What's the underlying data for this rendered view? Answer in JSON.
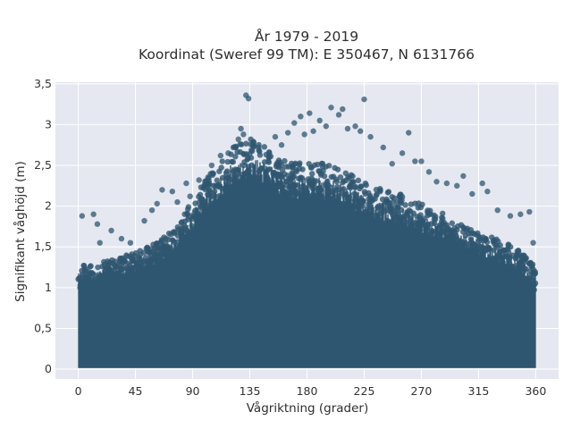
{
  "chart_data": {
    "type": "scatter",
    "title_lines": [
      "År 1979 - 2019",
      "Koordinat (Sweref 99 TM): E 350467, N 6131766"
    ],
    "xlabel": "Vågriktning (grader)",
    "ylabel": "Signifikant våghöjd (m)",
    "xlim": [
      -18,
      378
    ],
    "ylim": [
      -0.12,
      3.52
    ],
    "xticks": [
      0,
      45,
      90,
      135,
      180,
      225,
      270,
      315,
      360
    ],
    "xtick_labels": [
      "0",
      "45",
      "90",
      "135",
      "180",
      "225",
      "270",
      "315",
      "360"
    ],
    "yticks": [
      0,
      0.5,
      1,
      1.5,
      2,
      2.5,
      3,
      3.5
    ],
    "ytick_labels": [
      "0",
      "0,5",
      "1",
      "1,5",
      "2",
      "2,5",
      "3",
      "3,5"
    ],
    "grid": true,
    "marker_color": "#2f5670",
    "background_color": "#e5e8f0",
    "grid_color": "#ffffff",
    "density_envelope": {
      "x": [
        0,
        20,
        45,
        60,
        75,
        90,
        100,
        110,
        120,
        135,
        150,
        165,
        180,
        195,
        210,
        225,
        240,
        255,
        270,
        285,
        300,
        315,
        330,
        345,
        360
      ],
      "y_max": [
        1.15,
        1.2,
        1.3,
        1.4,
        1.55,
        1.9,
        2.1,
        2.3,
        2.45,
        2.6,
        2.45,
        2.3,
        2.3,
        2.3,
        2.2,
        2.1,
        2.0,
        1.95,
        1.85,
        1.75,
        1.65,
        1.55,
        1.45,
        1.35,
        1.15
      ]
    },
    "outliers": [
      {
        "x": 3,
        "y": 1.88
      },
      {
        "x": 12,
        "y": 1.9
      },
      {
        "x": 15,
        "y": 1.78
      },
      {
        "x": 17,
        "y": 1.55
      },
      {
        "x": 26,
        "y": 1.7
      },
      {
        "x": 34,
        "y": 1.6
      },
      {
        "x": 41,
        "y": 1.55
      },
      {
        "x": 52,
        "y": 1.82
      },
      {
        "x": 58,
        "y": 1.95
      },
      {
        "x": 62,
        "y": 2.03
      },
      {
        "x": 66,
        "y": 2.2
      },
      {
        "x": 74,
        "y": 2.18
      },
      {
        "x": 78,
        "y": 2.05
      },
      {
        "x": 85,
        "y": 2.28
      },
      {
        "x": 88,
        "y": 2.12
      },
      {
        "x": 95,
        "y": 2.32
      },
      {
        "x": 100,
        "y": 2.25
      },
      {
        "x": 105,
        "y": 2.5
      },
      {
        "x": 112,
        "y": 2.62
      },
      {
        "x": 118,
        "y": 2.65
      },
      {
        "x": 122,
        "y": 2.72
      },
      {
        "x": 126,
        "y": 2.82
      },
      {
        "x": 128,
        "y": 2.95
      },
      {
        "x": 130,
        "y": 2.88
      },
      {
        "x": 132,
        "y": 3.36
      },
      {
        "x": 134,
        "y": 3.32
      },
      {
        "x": 138,
        "y": 2.78
      },
      {
        "x": 142,
        "y": 2.72
      },
      {
        "x": 150,
        "y": 2.6
      },
      {
        "x": 155,
        "y": 2.85
      },
      {
        "x": 160,
        "y": 2.75
      },
      {
        "x": 165,
        "y": 2.9
      },
      {
        "x": 170,
        "y": 3.02
      },
      {
        "x": 175,
        "y": 3.1
      },
      {
        "x": 178,
        "y": 2.88
      },
      {
        "x": 182,
        "y": 3.14
      },
      {
        "x": 185,
        "y": 2.92
      },
      {
        "x": 190,
        "y": 3.05
      },
      {
        "x": 195,
        "y": 2.98
      },
      {
        "x": 199,
        "y": 3.21
      },
      {
        "x": 205,
        "y": 3.12
      },
      {
        "x": 208,
        "y": 3.19
      },
      {
        "x": 212,
        "y": 2.95
      },
      {
        "x": 218,
        "y": 2.98
      },
      {
        "x": 222,
        "y": 2.92
      },
      {
        "x": 225,
        "y": 3.31
      },
      {
        "x": 230,
        "y": 2.85
      },
      {
        "x": 240,
        "y": 2.72
      },
      {
        "x": 247,
        "y": 2.52
      },
      {
        "x": 255,
        "y": 2.65
      },
      {
        "x": 260,
        "y": 2.9
      },
      {
        "x": 265,
        "y": 2.55
      },
      {
        "x": 270,
        "y": 2.55
      },
      {
        "x": 276,
        "y": 2.42
      },
      {
        "x": 282,
        "y": 2.3
      },
      {
        "x": 290,
        "y": 2.28
      },
      {
        "x": 298,
        "y": 2.25
      },
      {
        "x": 303,
        "y": 2.37
      },
      {
        "x": 310,
        "y": 2.15
      },
      {
        "x": 318,
        "y": 2.28
      },
      {
        "x": 322,
        "y": 2.18
      },
      {
        "x": 330,
        "y": 1.95
      },
      {
        "x": 340,
        "y": 1.88
      },
      {
        "x": 348,
        "y": 1.9
      },
      {
        "x": 355,
        "y": 1.93
      },
      {
        "x": 358,
        "y": 1.55
      }
    ]
  }
}
